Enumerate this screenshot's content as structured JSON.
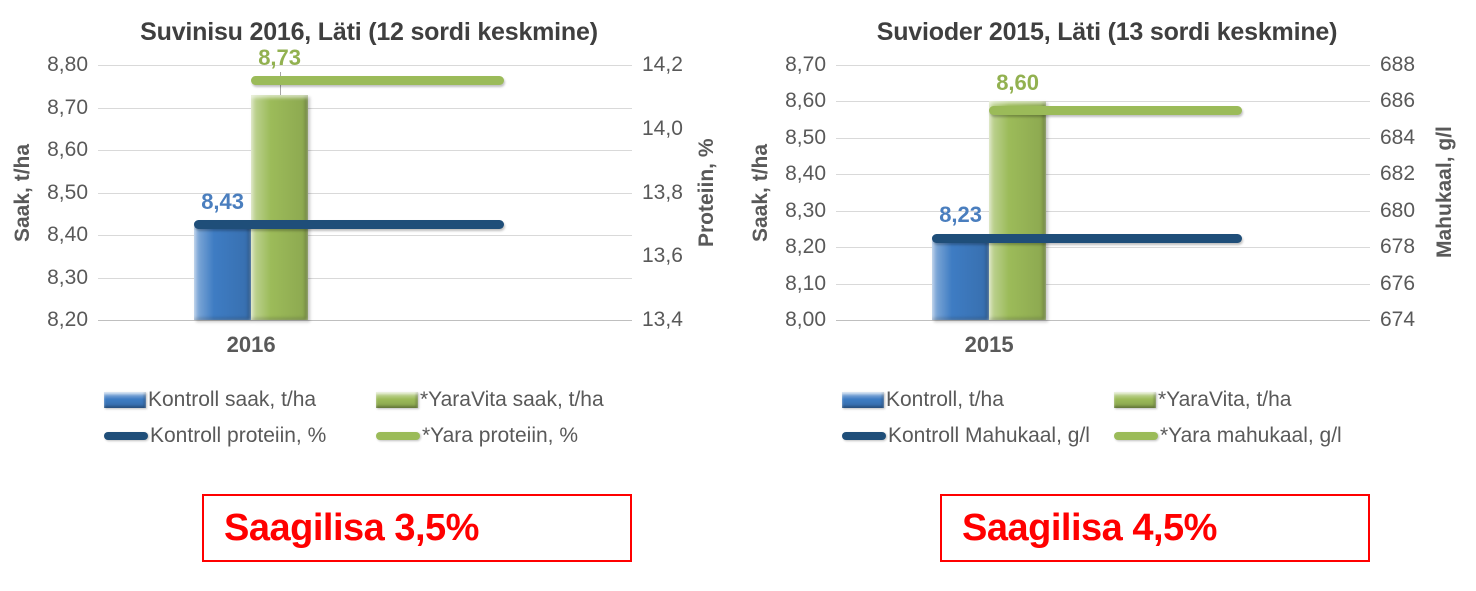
{
  "chart_data": [
    {
      "type": "bar",
      "title": "Suvinisu 2016, Läti (12 sordi keskmine)",
      "categories": [
        "2016"
      ],
      "left_axis": {
        "label": "Saak, t/ha",
        "min": 8.2,
        "max": 8.8,
        "step": 0.1,
        "ticks": [
          "8,80",
          "8,70",
          "8,60",
          "8,50",
          "8,40",
          "8,30",
          "8,20"
        ]
      },
      "right_axis": {
        "label": "Proteiin, %",
        "min": 13.4,
        "max": 14.2,
        "step": 0.2,
        "ticks": [
          "14,2",
          "14,0",
          "13,8",
          "13,6",
          "13,4"
        ]
      },
      "grid": true,
      "legend_position": "bottom",
      "series": [
        {
          "name": "Kontroll saak, t/ha",
          "kind": "bar",
          "axis": "left",
          "values": [
            8.43
          ],
          "data_labels": [
            "8,43"
          ],
          "color": "#3E7CC3",
          "label_color": "#4A7EBE"
        },
        {
          "name": "*YaraVita saak, t/ha",
          "kind": "bar",
          "axis": "left",
          "values": [
            8.73
          ],
          "data_labels": [
            "8,73"
          ],
          "color": "#9CBB59",
          "label_color": "#92B150"
        },
        {
          "name": "Kontroll proteiin, %",
          "kind": "line",
          "axis": "right",
          "values": [
            13.7
          ],
          "color": "#1F4E79"
        },
        {
          "name": "*Yara proteiin, %",
          "kind": "line",
          "axis": "right",
          "values": [
            14.15
          ],
          "color": "#9BBB59"
        }
      ],
      "callout": {
        "label": "Saagilisa 3,5%",
        "color": "#FF0000"
      }
    },
    {
      "type": "bar",
      "title": "Suvioder 2015, Läti (13 sordi keskmine)",
      "categories": [
        "2015"
      ],
      "left_axis": {
        "label": "Saak, t/ha",
        "min": 8.0,
        "max": 8.7,
        "step": 0.1,
        "ticks": [
          "8,70",
          "8,60",
          "8,50",
          "8,40",
          "8,30",
          "8,20",
          "8,10",
          "8,00"
        ]
      },
      "right_axis": {
        "label": "Mahukaal, g/l",
        "min": 674,
        "max": 688,
        "step": 2,
        "ticks": [
          "688",
          "686",
          "684",
          "682",
          "680",
          "678",
          "676",
          "674"
        ]
      },
      "grid": true,
      "legend_position": "bottom",
      "series": [
        {
          "name": "Kontroll, t/ha",
          "kind": "bar",
          "axis": "left",
          "values": [
            8.23
          ],
          "data_labels": [
            "8,23"
          ],
          "color": "#3E7CC3",
          "label_color": "#4A7EBE"
        },
        {
          "name": "*YaraVita, t/ha",
          "kind": "bar",
          "axis": "left",
          "values": [
            8.6
          ],
          "data_labels": [
            "8,60"
          ],
          "color": "#9CBB59",
          "label_color": "#92B150"
        },
        {
          "name": "Kontroll Mahukaal, g/l",
          "kind": "line",
          "axis": "right",
          "values": [
            678.5
          ],
          "color": "#1F4E79"
        },
        {
          "name": "*Yara mahukaal, g/l",
          "kind": "line",
          "axis": "right",
          "values": [
            685.5
          ],
          "color": "#9BBB59"
        }
      ],
      "callout": {
        "label": "Saagilisa 4,5%",
        "color": "#FF0000"
      }
    }
  ]
}
